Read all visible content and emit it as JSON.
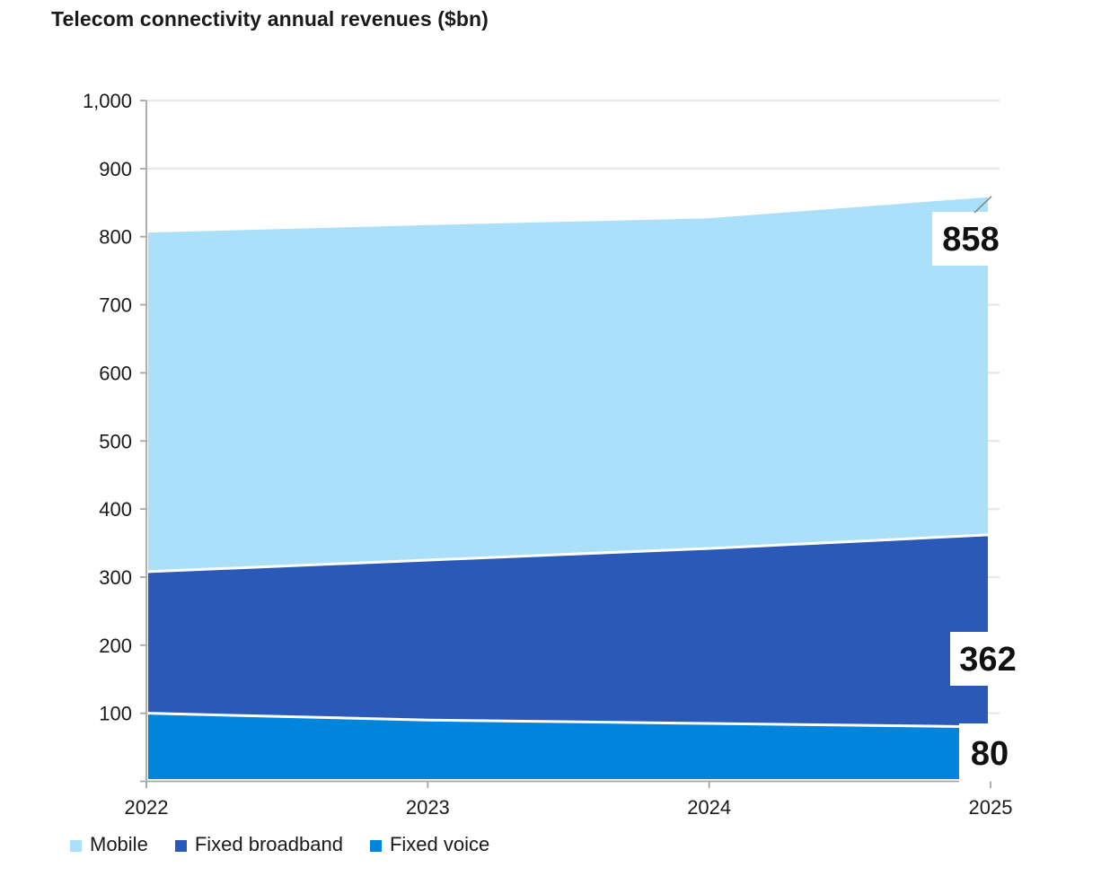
{
  "title": "Telecom connectivity annual revenues ($bn)",
  "colors": {
    "background": "#FFFFFF",
    "axis": "#A6A6A6",
    "gridline": "#E9E9E9",
    "axis_text": "#1A1A1A",
    "data_label_text": "#111111",
    "boundary_stroke": "#FFFFFF",
    "leader_line": "#8A8A8A"
  },
  "chart_data": {
    "type": "area",
    "stacked": true,
    "title": "Telecom connectivity annual revenues ($bn)",
    "x_labels": [
      "2022",
      "2023",
      "2024",
      "2025"
    ],
    "series": [
      {
        "name": "Fixed voice",
        "color": "#0084DC",
        "values": [
          100,
          90,
          85,
          80
        ]
      },
      {
        "name": "Fixed broadband",
        "color": "#2B59B8",
        "values": [
          208,
          235,
          257,
          282
        ]
      },
      {
        "name": "Mobile",
        "color": "#ABE0FA",
        "values": [
          498,
          492,
          485,
          496
        ]
      }
    ],
    "stack_totals": [
      806,
      817,
      827,
      858
    ],
    "end_labels": [
      {
        "text": "858",
        "anchor_value": 858,
        "leader_line": true
      },
      {
        "text": "362",
        "anchor_value": 362,
        "leader_line": false
      },
      {
        "text": "80",
        "anchor_value": 80,
        "leader_line": false
      }
    ],
    "ylim": [
      0,
      1000
    ],
    "ytick_values": [
      100,
      200,
      300,
      400,
      500,
      600,
      700,
      800,
      900,
      1000
    ],
    "ytick_labels": [
      "100",
      "200",
      "300",
      "400",
      "500",
      "600",
      "700",
      "800",
      "900",
      "1,000"
    ],
    "grid": "horizontal",
    "legend": {
      "position": "bottom-left",
      "entries": [
        {
          "label": "Mobile",
          "color": "#ABE0FA"
        },
        {
          "label": "Fixed broadband",
          "color": "#2B59B8"
        },
        {
          "label": "Fixed voice",
          "color": "#0084DC"
        }
      ]
    }
  }
}
